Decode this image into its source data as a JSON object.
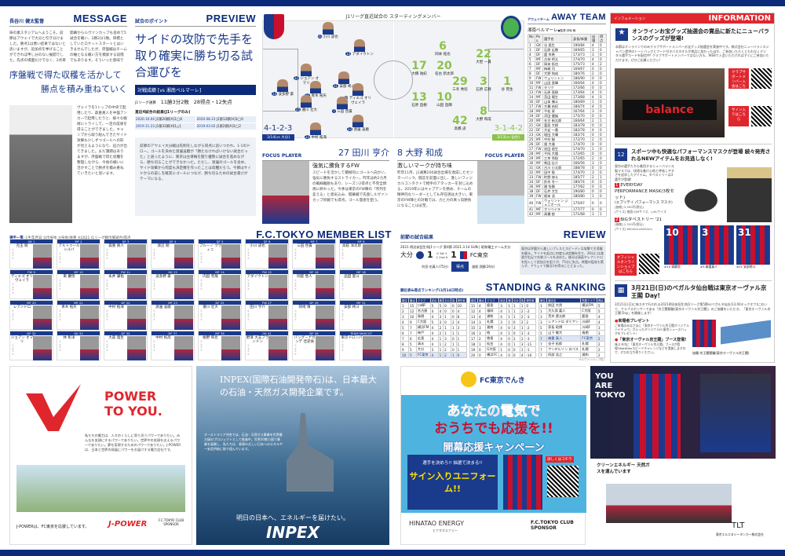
{
  "message": {
    "label": "長谷川 健太監督",
    "title": "MESSAGE",
    "intro": "味の素スタジアムへようこそ。前節はアウェイで大分と引き分けました。勝点1は悪い結果ではないと思いますが、追加点を挙げることができれば申し分のない展開でした。先点の場面だけでなく、2点目を取れなかったことも反省材料として、次に活かしていかなければならないと思います。",
    "intro2": "開幕からルヴァンカップも含めて5試合を戦い、2勝2分1敗。目標としていたロケットスタートとはいきませんでしたが、序盤戦はチームの軸となる戦い方を模索する段階でもあります。そういった意味では、新加入選手を試したり、ディエゴ オリ",
    "headline1": "序盤戦で得た収穫を活かして",
    "headline2": "勝点を積み重ねていく",
    "body": "ヴェイラを1トップの中央で起用したり、森重真人を中盤アンカーで起用したりと、様々な戦術にトライして、一定の成果を得ることができました。キャンプから取り組んできたサイド攻撃も少しずつゴールへの形が見えるようになり、迫力が出てきました。まだ課題はありますが、序盤戦で得た収穫を整理しながら、今後の戦いに活かすことで勝点を積み重ねていきたいと思います。"
  },
  "preview": {
    "label": "試合のポイント",
    "title": "PREVIEW",
    "headline": "サイドの攻防で先手を取り確実に勝ち切る試合運びを",
    "record_title": "対戦成績 [vs 湘南ベルマーレ]",
    "record_league": "J1リーグ通算",
    "record_wl": "11勝3分2敗",
    "record_goals": "28得点・12失点",
    "recent_title": "直近4試合の結果(J1リーグのみ)",
    "recent": [
      {
        "date": "2020.10.04",
        "result": "J1第20節[A]1◯0"
      },
      {
        "date": "2020.08.23",
        "result": "J1第12節[H]3◯0"
      },
      {
        "date": "2019.11.23",
        "result": "J1第32節[H]1△1"
      },
      {
        "date": "2019.03.02",
        "result": "J1第2節[A]3◯2"
      }
    ],
    "body": "前節のアウェイ大分戦は先制をしながら同点に追いつかれ、1-1のドロー。ゴールを決めた渡邊凌磨が「勝たなければいけない試合だった」と語ったように、東京は主導権を握り優勢に試合を進めながら、勝ち切ることができなかった。ただし、渡邊のゴールを含め、サイド攻撃から何度も決定機を作ったことは収穫だろう。今節はサイドからの崩しを確実にゴールにつなげ、勝ち切るための試合運びがテーマになる。"
  },
  "lineup": {
    "title": "J1リーグ直近試合の スターティングメンバー",
    "home_formation": "4-1-2-3",
    "home_match": "3/14[vs 大分]",
    "away_formation": "3-1-4-2",
    "away_match": "3/13[vs 仙台]",
    "home": [
      {
        "n": "6",
        "name": "小川 諒也"
      },
      {
        "n": "15",
        "name": "アダイウトン"
      },
      {
        "n": "32",
        "name": "ジョアン オマリ"
      },
      {
        "n": "31",
        "name": "安部 柊斗"
      },
      {
        "n": "13",
        "name": "波多野 豪"
      },
      {
        "n": "21",
        "name": "青木 拓矢"
      },
      {
        "n": "9",
        "name": "ディエゴ オリヴェイラ"
      },
      {
        "n": "25",
        "name": "蓮川 壮大"
      },
      {
        "n": "7",
        "name": "三田 啓貴"
      },
      {
        "n": "23",
        "name": "渡邊 凌磨"
      },
      {
        "n": "22",
        "name": "中村 拓海"
      }
    ],
    "away": [
      {
        "n": "6",
        "name": "岡本 拓也"
      },
      {
        "n": "22",
        "name": "大岩 一貴"
      },
      {
        "n": "17",
        "name": "大橋 祐紀"
      },
      {
        "n": "20",
        "name": "名古 新太郎"
      },
      {
        "n": "29",
        "name": "三幸 秀稔"
      },
      {
        "n": "3",
        "name": "石原 広教"
      },
      {
        "n": "1",
        "name": "谷 晃生"
      },
      {
        "n": "13",
        "name": "石原 直樹"
      },
      {
        "n": "10",
        "name": "山田 直輝"
      },
      {
        "n": "8",
        "name": "大野 和成"
      },
      {
        "n": "42",
        "name": "高橋 諒"
      }
    ]
  },
  "focus": [
    {
      "label": "FOCUS PLAYER",
      "name": "27 田川 亨介",
      "headline": "強気に勝負するFW",
      "body": "スピードを活かして積極的にゴールへ向かい、強気に勝負するストライカー。昨年は約2カ月の戦線離脱もあり、シーズン2得点と不完全燃焼に終わった。今季は東京のFW陣の「序列を変える」と意気込み、開幕戦で先発しルヴァンカップ初戦でも得点。ゴール量産を狙う。"
    },
    {
      "label": "FOCUS PLAYER",
      "name": "8 大野 和成",
      "headline": "激しいマークが持ち味",
      "body": "昨年11月、J1通算200試合出場を達成したセンターバック。闘志を前面に出し、激しいフィジカルコンタクトで相手のアタッカーを封じ込める。2019年にはキャプテンを務め、チームの精神的なリーダーとしても存在感は大きい。東京のFW陣との対戦では、力と力の真っ向勝負になることは必至。"
    }
  ],
  "away_team": {
    "label": "アウェイチーム",
    "title": "AWAY TEAM",
    "team": "湘南ベルマーレ",
    "coach": "●監督:浮嶋 敏",
    "headers": [
      "No.",
      "Pos.",
      "選手名",
      "身長/体重",
      "出場",
      "得点"
    ],
    "rows": [
      [
        "1",
        "GK",
        "谷 晃生",
        "190/84",
        "4",
        "0"
      ],
      [
        "3",
        "DF",
        "石原 広教",
        "169/65",
        "3",
        "0"
      ],
      [
        "4",
        "DF",
        "舘 幸希",
        "173/73",
        "3",
        "0"
      ],
      [
        "5",
        "MF",
        "古林 将太",
        "174/70",
        "4",
        "0"
      ],
      [
        "6",
        "DF",
        "岡本 拓也",
        "175/73",
        "4",
        "2"
      ],
      [
        "7",
        "MF",
        "梅崎 司",
        "169/67",
        "0",
        "0"
      ],
      [
        "8",
        "DF",
        "大野 和成",
        "180/76",
        "2",
        "0"
      ],
      [
        "9",
        "FW",
        "ウェリントン",
        "186/90",
        "0",
        "0"
      ],
      [
        "10",
        "MF",
        "山田 直輝",
        "166/64",
        "4",
        "0"
      ],
      [
        "11",
        "FW",
        "タリク",
        "172/66",
        "0",
        "0"
      ],
      [
        "13",
        "FW",
        "石原 直樹",
        "173/64",
        "4",
        "0"
      ],
      [
        "14",
        "MF",
        "茨田 陽生",
        "173/68",
        "4",
        "0"
      ],
      [
        "16",
        "DF",
        "山本 脩斗",
        "180/69",
        "1",
        "0"
      ],
      [
        "17",
        "FW",
        "大橋 祐紀",
        "180/74",
        "4",
        "0"
      ],
      [
        "18",
        "MF",
        "平松 昇",
        "167/64",
        "3",
        "0"
      ],
      [
        "19",
        "DF",
        "浮田 健誠",
        "175/70",
        "0",
        "0"
      ],
      [
        "20",
        "MF",
        "名古 新太郎",
        "166/64",
        "2",
        "1"
      ],
      [
        "21",
        "GK",
        "富居 大樹",
        "183/78",
        "0",
        "0"
      ],
      [
        "22",
        "DF",
        "大岩 一貴",
        "182/78",
        "4",
        "0"
      ],
      [
        "23",
        "GK",
        "堀田 大暉",
        "182/74",
        "0",
        "0"
      ],
      [
        "25",
        "MF",
        "中村 駿",
        "172/70",
        "2",
        "0"
      ],
      [
        "26",
        "DF",
        "畑 大雅",
        "174/70",
        "0",
        "0"
      ],
      [
        "27",
        "FW",
        "池田 昌生",
        "174/70",
        "1",
        "0"
      ],
      [
        "28",
        "MF",
        "平岡 大陽",
        "172/65",
        "0",
        "0"
      ],
      [
        "29",
        "MF",
        "三幸 秀稔",
        "172/65",
        "2",
        "0"
      ],
      [
        "30",
        "MF",
        "柴田 壮介",
        "166/56",
        "3",
        "0"
      ],
      [
        "31",
        "GK",
        "古川 小太郎",
        "188/78",
        "0",
        "0"
      ],
      [
        "32",
        "MF",
        "田中 聡",
        "174/70",
        "3",
        "0"
      ],
      [
        "33",
        "FW",
        "町野 修斗",
        "185/77",
        "2",
        "1"
      ],
      [
        "34",
        "DF",
        "鈴木 冬一",
        "180/74",
        "0",
        "0"
      ],
      [
        "36",
        "MF",
        "謝 怡勝",
        "177/62",
        "0",
        "0"
      ],
      [
        "38",
        "DF",
        "石井 大生",
        "190/80",
        "0",
        "0"
      ],
      [
        "39",
        "FW",
        "根本 凌",
        "180/80",
        "1",
        "0"
      ],
      [
        "40",
        "FW",
        "ウェリントン ジュニオール",
        "175/67",
        "0",
        "0"
      ],
      [
        "41",
        "MF",
        "オリベイラ",
        "177/77",
        "0",
        "0"
      ],
      [
        "42",
        "MF",
        "高橋 諒",
        "171/68",
        "3",
        "1"
      ]
    ]
  },
  "info": {
    "label": "インフォメーション",
    "title": "INFORMATION",
    "item1_title": "オンラインお宝グッズ抽選会の賞品に新たにニューバランスのグッズが登場!",
    "item1_body": "本節はオンラインでのみクラブサポートメンバーお宝グッズ抽選会を実施中です。株式会社ニューバランスジャパン提供のトートバッグとフード付きバスタオルが賞品に加わったほか、ご参加いただくともれなくデジタル選手カードを配信中! クラブサポートメンバーではない方も、WEBで入会いただければすぐにご参加いただけます。ぜひご応募ください!",
    "item1_button": "クラブサポートメンバー入会はこちら",
    "item1_button2": "サイン入りはこちら",
    "bag_brand": "balance",
    "item2_title": "スポーツ中も快適なパフォーマンスマスクが登場 続々発売されるNEWアイテムをお見逃しなく!",
    "item2_body": "東京の選手たちも着用するニューバランス製マスクは、快適な着け心地と呼吸しやすさを追求したアイテム。タペストリーは3選手が登場!",
    "product1": "EVERYDAY PERFORMANCE MASK(3枚セット)",
    "product1_sub": "(エブリデイ パフォーマンス マスク)",
    "product1_price": "[価格] 3,300円(税込)",
    "product1_size": "[サイズ] 推奨:S/Mサイズ、L/XLサイズ",
    "product2": "BIGタペストリー '21",
    "product2_price": "[価格] 1,320円(税込)",
    "product2_size": "[サイズ] 600mm×800mm",
    "shop_button": "オフィシャルオンラインショップはこちら",
    "tapestries": [
      {
        "n": "10",
        "caption": "#10 東慶悟"
      },
      {
        "n": "3",
        "caption": "#3 森重真人"
      },
      {
        "n": "31",
        "caption": "#31 安部柊斗"
      }
    ],
    "item3_title": "3月21日(日)のベガルタ仙台戦は東京オーヴァル京王閣 Day!",
    "item3_body": "3月21日(日)に味スタで行われる2021明治安田生命J1リーグ第5節vsベガルタ仙台(13:00キックオフ)において、クラブスポンサーである「京王閣競輪(東京オーヴァル京王閣)」のご協賛をいただき、「東京オーヴァル京王閣 Day」を開催します!",
    "item3_sub1": "来場者プレゼント",
    "item3_sub1_body": "ご来場のみなさまに「東京オーヴァル京王閣オリジナルハイチュウ」が入ったオリジナルFC東京シューズバッグをプレゼント!",
    "item3_sub2": "「東京オーヴァル京王閣」ブース登場!",
    "item3_sub2_body": "味スタ内に「東京オーヴァル京王閣」ブースが登場!WattBikeスピードチャレンジなどを実施しますので、ぜひお立ち寄りください。",
    "item3_credit": "協賛:京王閣競輪(東京オーヴァル京王閣)"
  },
  "review": {
    "label": "前節の試合結果",
    "title": "REVIEW",
    "match": "2021 明治安田生命J1リーグ 第4節 2021.3.14 SUN | 昭和電工ドーム大分",
    "home": "大分",
    "home_score": "1",
    "away": "FC東京",
    "away_score": "1",
    "h1": "0",
    "a1": "1",
    "h2": "1",
    "a2": "0",
    "half1": "1st",
    "half2": "2nd",
    "home_scorer": "町田 也真人(75分)",
    "goal_label": "得点",
    "away_scorer": "渡邊 凌磨(26分)",
    "body": "東京は序盤から激しいプレスとスピーディな攻撃で主導権を握る。サイドを起点に何度も決定機を作り、26分には渡邊が右足で先制ゴールを決めた。後半は高萩やレアンドロを投入して追加点を狙うが、75分に失点。終盤の猛攻も実らず、アウェイで勝点1を得るにとどまった。"
  },
  "standing": {
    "label": "順位表&得点ランキング(3月14日時点)",
    "title": "STANDING & RANKING",
    "headers": [
      "順位",
      "勝点",
      "クラブ",
      "試合",
      "勝",
      "引分",
      "負",
      "得失差"
    ],
    "rows": [
      [
        "1",
        "15",
        "川崎F",
        "5",
        "5",
        "0",
        "0",
        "10"
      ],
      [
        "2",
        "12",
        "名古屋",
        "4",
        "4",
        "0",
        "0",
        "4"
      ],
      [
        "3",
        "10",
        "鳥栖",
        "4",
        "3",
        "1",
        "0",
        "8"
      ],
      [
        "4",
        "9",
        "C大阪",
        "5",
        "3",
        "0",
        "2",
        "4"
      ],
      [
        "5",
        "7",
        "横浜FM",
        "4",
        "2",
        "1",
        "1",
        "3"
      ],
      [
        "6",
        "7",
        "神戸",
        "4",
        "2",
        "1",
        "1",
        "1"
      ],
      [
        "7",
        "6",
        "広島",
        "4",
        "1",
        "3",
        "0",
        "1"
      ],
      [
        "8",
        "5",
        "清水",
        "4",
        "1",
        "2",
        "1",
        "1"
      ],
      [
        "9",
        "5",
        "大分",
        "3",
        "1",
        "2",
        "0",
        "1"
      ],
      [
        "10",
        "5",
        "FC東京",
        "4",
        "1",
        "2",
        "1",
        "0"
      ],
      [
        "11",
        "4",
        "鹿島",
        "3",
        "1",
        "1",
        "1",
        "0"
      ],
      [
        "12",
        "4",
        "福岡",
        "4",
        "1",
        "1",
        "2",
        "-2"
      ],
      [
        "13",
        "4",
        "浦和",
        "4",
        "1",
        "1",
        "2",
        "-3"
      ],
      [
        "14",
        "3",
        "札幌",
        "3",
        "1",
        "0",
        "2",
        "2"
      ],
      [
        "15",
        "3",
        "湘南",
        "4",
        "0",
        "3",
        "1",
        "-2"
      ],
      [
        "16",
        "3",
        "柏",
        "4",
        "1",
        "0",
        "3",
        "-3"
      ],
      [
        "17",
        "2",
        "徳島",
        "4",
        "0",
        "2",
        "2",
        "-3"
      ],
      [
        "18",
        "1",
        "仙台",
        "4",
        "0",
        "1",
        "3",
        "-11"
      ],
      [
        "19",
        "0",
        "G大阪",
        "1",
        "0",
        "0",
        "1",
        "-1"
      ],
      [
        "20",
        "0",
        "横浜FC",
        "4",
        "0",
        "0",
        "4",
        "-10"
      ]
    ],
    "scorer_headers": [
      "順位",
      "選手名",
      "所属クラブ",
      "得点"
    ],
    "scorers": [
      [
        "1",
        "前田 大然",
        "横浜FM",
        "5"
      ],
      [
        "1",
        "大久保 嘉人",
        "C大阪",
        "5"
      ],
      [
        "3",
        "荒木 遼太郎",
        "鹿島",
        "4"
      ],
      [
        "3",
        "レアンドロ ダミアン",
        "川崎F",
        "4"
      ],
      [
        "5",
        "家長 昭博",
        "川崎F",
        "3"
      ],
      [
        "5",
        "山下 敬大",
        "鳥栖",
        "3"
      ],
      [
        "7",
        "森重 真人",
        "FC東京",
        "2"
      ],
      [
        "7",
        "金子 拓郎",
        "札幌",
        "2"
      ],
      [
        "7",
        "アンデルソン ロペス",
        "札幌",
        "2"
      ],
      [
        "7",
        "阿部 浩之",
        "浦和",
        "2"
      ]
    ],
    "note": "※ルヴァンカップ除く"
  },
  "members": {
    "label": "選手一覧",
    "legend": "①生年月日 ②出身地 ③身長/体重 ④2021 J1リーグ戦出場試合/得点",
    "title": "F.C.TOKYO MEMBER LIST",
    "list": [
      [
        "GK 1",
        "児玉 剛"
      ],
      [
        "MF 2",
        "アルトゥール シルバ"
      ],
      [
        "DF 3",
        "森重 真人"
      ],
      [
        "DF 4",
        "渡辺 剛"
      ],
      [
        "DF 5",
        "ブルーノ ウヴィニ"
      ],
      [
        "DF 6",
        "小川 諒也"
      ],
      [
        "MF 7",
        "三田 啓貴"
      ],
      [
        "MF 8",
        "高萩 洋次郎"
      ],
      [
        "FW 9",
        "ディエゴ オリヴェイラ"
      ],
      [
        "MF 10",
        "東 慶悟"
      ],
      [
        "FW 11",
        "永井 謙佑"
      ],
      [
        "GK 13",
        "波多野 豪"
      ],
      [
        "MF 14",
        "内田 宅哉"
      ],
      [
        "FW 15",
        "アダイウトン"
      ],
      [
        "DF 16",
        "岡庭 愁人"
      ],
      [
        "MF 18",
        "品田 愛斗"
      ],
      [
        "MF 20",
        "レアンドロ"
      ],
      [
        "MF 21",
        "青木 拓矢"
      ],
      [
        "DF 22",
        "中村 拓海"
      ],
      [
        "MF 23",
        "渡邊 凌磨"
      ],
      [
        "DF 25",
        "蓮川 壮大"
      ],
      [
        "FW 27",
        "田川 亨介"
      ],
      [
        "DF 29",
        "岡崎 慎"
      ],
      [
        "MF 31",
        "安部 柊斗"
      ],
      [
        "DF 32",
        "ジョアン オマリ"
      ],
      [
        "GK 33",
        "林 彰洋"
      ],
      [
        "DF 34",
        "大森 理生"
      ],
      [
        "DF 37",
        "中村 帆高"
      ],
      [
        "MF 38",
        "紺野 和也"
      ],
      [
        "GK 41",
        "野澤 大志ブランドン"
      ],
      [
        "DF 49",
        "バングーナガンデ 佳史扶"
      ],
      [
        "TEAM MASCOT",
        "東京ドロンパ"
      ]
    ]
  },
  "ads": {
    "jpower_headline": "POWER TO YOU.",
    "jpower_body": "私たちの電力は、人々のくらしに寄り添うパワーでありたい。みんなを笑顔にするパワーでありたい。世界中の笑顔を支えるパワーでありたい。夢を実現するためのパワーでありたい。J-POWERは、日本と世界の発展にパワーをお届けする電力会社です。",
    "jpower_footer": "J-POWERは、FC東京を応援しています。",
    "jpower_logo": "J-POWER",
    "inpex_headline": "INPEX(国際石油開発帝石)は、日本最大の石油・天然ガス開発企業です。",
    "inpex_body": "オーストラリア沖合では、石油・天然ガス事業を世界最大級のプロジェクトとして推進中。世界20数カ国で事業を展開し、私たちは、資源の乏しい日本へのエネルギー安定供給に取り組んでいます。",
    "inpex_tagline": "明日の日本へ、エネルギーを届けたい。",
    "inpex_logo": "INPEX",
    "denki_brand": "FC東京でんき",
    "denki_headline1": "あなたの電気で",
    "denki_headline2": "おうちでも応援を!!",
    "denki_campaign": "開幕応援キャンペーン",
    "denki_prize_lead": "選手を決めろ!! 抽選で決まる!!",
    "denki_prize": "サイン入りユニフォーム!!",
    "denki_detail": "詳しくはコチラ",
    "denki_company": "HINATAO ENERGY",
    "denki_company_sub": "ヒナタオエナジー",
    "club_sponsor": "F.C.TOKYO CLUB SPONSOR",
    "tokyo_slogan": "YOU ARE TOKYO",
    "tlt_headline": "クリーンエネルギー 天然ガスを運んでいます",
    "tlt_logo": "TLT",
    "tlt_company": "東京エルエヌジータンカー株式会社"
  },
  "colors": {
    "navy": "#0b2a7a",
    "red": "#e0262d",
    "green": "#8bc34a"
  }
}
